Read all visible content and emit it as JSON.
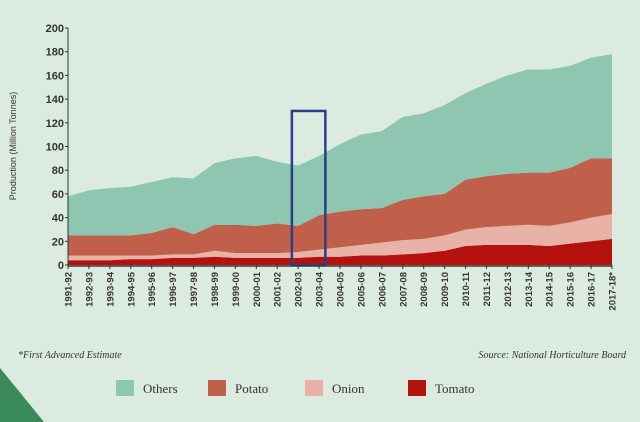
{
  "chart_data": {
    "type": "area",
    "stacked": true,
    "title": "",
    "xlabel": "",
    "ylabel": "Production (Million Tonnes)",
    "ylim": [
      0,
      200
    ],
    "yticks": [
      0,
      20,
      40,
      60,
      80,
      100,
      120,
      140,
      160,
      180,
      200
    ],
    "categories": [
      "1991-92",
      "1992-93",
      "1993-94",
      "1994-95",
      "1995-96",
      "1996-97",
      "1997-98",
      "1998-99",
      "1999-00",
      "2000-01",
      "2001-02",
      "2002-03",
      "2003-04",
      "2004-05",
      "2005-06",
      "2006-07",
      "2007-08",
      "2008-09",
      "2009-10",
      "2010-11",
      "2011-12",
      "2012-13",
      "2013-14",
      "2014-15",
      "2015-16",
      "2016-17",
      "2017-18*"
    ],
    "series": [
      {
        "name": "Tomato",
        "color": "#b3120f",
        "values": [
          4,
          4,
          4,
          5,
          5,
          6,
          6,
          7,
          6,
          6,
          6,
          6,
          7,
          7,
          8,
          8,
          9,
          10,
          12,
          16,
          17,
          17,
          17,
          16,
          18,
          20,
          22
        ]
      },
      {
        "name": "Onion",
        "color": "#e8b3a6",
        "values": [
          4,
          4,
          4,
          3,
          3,
          3,
          3,
          5,
          4,
          4,
          4,
          5,
          6,
          8,
          9,
          11,
          12,
          12,
          13,
          14,
          15,
          16,
          17,
          17,
          18,
          20,
          21
        ]
      },
      {
        "name": "Potato",
        "color": "#c1604a",
        "values": [
          17,
          17,
          17,
          17,
          19,
          23,
          17,
          22,
          24,
          23,
          25,
          22,
          29,
          30,
          30,
          29,
          34,
          36,
          35,
          42,
          43,
          44,
          44,
          45,
          46,
          50,
          47
        ]
      },
      {
        "name": "Others",
        "color": "#8ec6b1",
        "values": [
          33,
          38,
          40,
          41,
          43,
          42,
          47,
          52,
          56,
          59,
          52,
          51,
          50,
          57,
          63,
          65,
          70,
          70,
          75,
          73,
          78,
          83,
          87,
          87,
          86,
          85,
          88
        ]
      }
    ],
    "legend_order": [
      "Others",
      "Potato",
      "Onion",
      "Tomato"
    ],
    "legend_position": "bottom",
    "highlight": {
      "from": "2002-03",
      "to": "2003-04",
      "top": 130,
      "color": "#2b3f86"
    },
    "footnote": "*First Advanced Estimate",
    "source": "Source: National Horticulture Board"
  }
}
